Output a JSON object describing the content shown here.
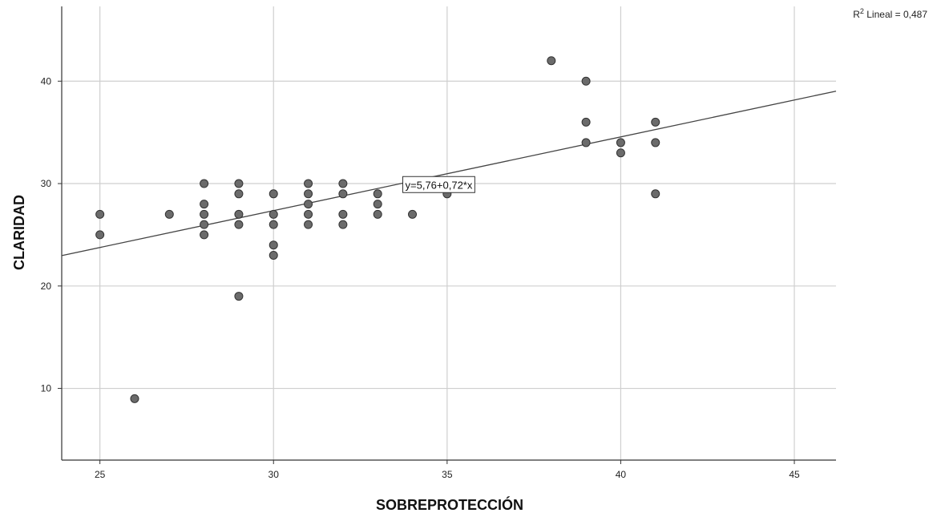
{
  "chart_data": {
    "type": "scatter",
    "xlabel": "SOBREPROTECCIÓN",
    "ylabel": "CLARIDAD",
    "xlim": [
      23.9,
      46.2
    ],
    "ylim": [
      3,
      47.3
    ],
    "x_ticks": [
      25,
      30,
      35,
      40,
      45
    ],
    "y_ticks": [
      10,
      20,
      30,
      40
    ],
    "grid": true,
    "points": [
      {
        "x": 25,
        "y": 27
      },
      {
        "x": 25,
        "y": 25
      },
      {
        "x": 26,
        "y": 9
      },
      {
        "x": 27,
        "y": 27
      },
      {
        "x": 28,
        "y": 30
      },
      {
        "x": 28,
        "y": 28
      },
      {
        "x": 28,
        "y": 27
      },
      {
        "x": 28,
        "y": 26
      },
      {
        "x": 28,
        "y": 25
      },
      {
        "x": 29,
        "y": 30
      },
      {
        "x": 29,
        "y": 29
      },
      {
        "x": 29,
        "y": 27
      },
      {
        "x": 29,
        "y": 26
      },
      {
        "x": 29,
        "y": 19
      },
      {
        "x": 30,
        "y": 29
      },
      {
        "x": 30,
        "y": 27
      },
      {
        "x": 30,
        "y": 26
      },
      {
        "x": 30,
        "y": 24
      },
      {
        "x": 30,
        "y": 23
      },
      {
        "x": 31,
        "y": 30
      },
      {
        "x": 31,
        "y": 29
      },
      {
        "x": 31,
        "y": 28
      },
      {
        "x": 31,
        "y": 27
      },
      {
        "x": 31,
        "y": 26
      },
      {
        "x": 32,
        "y": 30
      },
      {
        "x": 32,
        "y": 29
      },
      {
        "x": 32,
        "y": 27
      },
      {
        "x": 32,
        "y": 26
      },
      {
        "x": 33,
        "y": 29
      },
      {
        "x": 33,
        "y": 28
      },
      {
        "x": 33,
        "y": 27
      },
      {
        "x": 34,
        "y": 30
      },
      {
        "x": 34,
        "y": 27
      },
      {
        "x": 35,
        "y": 29
      },
      {
        "x": 38,
        "y": 42
      },
      {
        "x": 39,
        "y": 40
      },
      {
        "x": 39,
        "y": 36
      },
      {
        "x": 39,
        "y": 34
      },
      {
        "x": 40,
        "y": 34
      },
      {
        "x": 40,
        "y": 33
      },
      {
        "x": 41,
        "y": 36
      },
      {
        "x": 41,
        "y": 34
      },
      {
        "x": 41,
        "y": 29
      }
    ],
    "fit_line": {
      "intercept": 5.76,
      "slope": 0.72,
      "equation_label": "y=5,76+0,72*x",
      "label_anchor": {
        "x": 34,
        "y": 31
      }
    },
    "r2_label": {
      "prefix": "R",
      "sup": "2",
      "text": " Lineal = 0,487"
    },
    "colors": {
      "point_fill": "#6b6b6b",
      "point_stroke": "#333333",
      "grid": "#cfcfcf",
      "fit_line": "#444444",
      "axis": "#333333"
    }
  }
}
